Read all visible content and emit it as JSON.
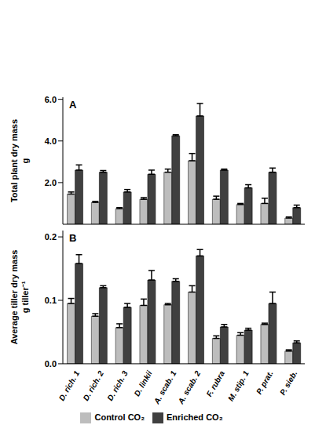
{
  "chart_data": [
    {
      "type": "bar",
      "title": "A",
      "y_label": "Total plant dry mass\ng",
      "categories": [
        "D. rich. 1",
        "D. rich. 2",
        "D. rich. 3",
        "D. linkii",
        "A. scab. 1",
        "A. scab. 2",
        "F. rubra",
        "M. stip. 1",
        "P. prat.",
        "P. sieb."
      ],
      "series": [
        {
          "name": "Control CO₂",
          "color": "#bdbdbd",
          "values": [
            1.45,
            1.05,
            0.75,
            1.2,
            2.5,
            3.05,
            1.2,
            0.95,
            1.0,
            0.3
          ],
          "errors": [
            0.1,
            0.05,
            0.05,
            0.08,
            0.15,
            0.35,
            0.15,
            0.05,
            0.25,
            0.05
          ]
        },
        {
          "name": "Enriched CO₂",
          "color": "#404040",
          "values": [
            2.6,
            2.5,
            1.55,
            2.4,
            4.25,
            5.2,
            2.6,
            1.75,
            2.5,
            0.8
          ],
          "errors": [
            0.25,
            0.08,
            0.12,
            0.2,
            0.05,
            0.6,
            0.05,
            0.15,
            0.2,
            0.12
          ]
        }
      ],
      "ylim": [
        0,
        6.1
      ],
      "yticks": [
        {
          "value": 0,
          "label": "0.0"
        },
        {
          "value": 2,
          "label": "2.0"
        },
        {
          "value": 4,
          "label": "4.0"
        },
        {
          "value": 6,
          "label": "6.0"
        }
      ],
      "tick_labels": "y"
    },
    {
      "type": "bar",
      "title": "B",
      "y_label": "Average tiller dry mass\ng tiller⁻¹",
      "categories": [
        "D. rich. 1",
        "D. rich. 2",
        "D. rich. 3",
        "D. linkii",
        "A. scab. 1",
        "A. scab. 2",
        "F. rubra",
        "M. stip. 1",
        "P. prat.",
        "P. sieb."
      ],
      "series": [
        {
          "name": "Control CO₂",
          "color": "#bdbdbd",
          "values": [
            0.095,
            0.075,
            0.057,
            0.092,
            0.093,
            0.113,
            0.04,
            0.045,
            0.062,
            0.02
          ],
          "errors": [
            0.008,
            0.004,
            0.006,
            0.01,
            0.002,
            0.01,
            0.004,
            0.004,
            0.002,
            0.002
          ]
        },
        {
          "name": "Enriched CO₂",
          "color": "#404040",
          "values": [
            0.158,
            0.12,
            0.089,
            0.132,
            0.13,
            0.17,
            0.058,
            0.053,
            0.095,
            0.033
          ],
          "errors": [
            0.014,
            0.003,
            0.006,
            0.015,
            0.004,
            0.01,
            0.004,
            0.003,
            0.018,
            0.003
          ]
        }
      ],
      "ylim": [
        0,
        0.21
      ],
      "yticks": [
        {
          "value": 0,
          "label": "0.0"
        },
        {
          "value": 0.1,
          "label": "0.1"
        },
        {
          "value": 0.2,
          "label": "0.2"
        }
      ],
      "legend": "bottom"
    }
  ]
}
